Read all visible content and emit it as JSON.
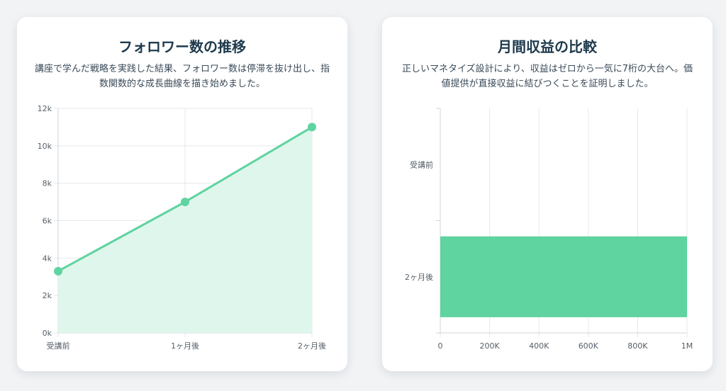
{
  "colors": {
    "accent": "#5fd3a0",
    "accent_fill": "#dff6ec",
    "title": "#1e3a4c"
  },
  "followers_card": {
    "title": "フォロワー数の推移",
    "description": "講座で学んだ戦略を実践した結果、フォロワー数は停滞を抜け出し、指数関数的な成長曲線を描き始めました。"
  },
  "revenue_card": {
    "title": "月間収益の比較",
    "description": "正しいマネタイズ設計により、収益はゼロから一気に7桁の大台へ。価値提供が直接収益に結びつくことを証明しました。"
  },
  "chart_data": [
    {
      "type": "area",
      "title": "フォロワー数の推移",
      "categories": [
        "受講前",
        "1ヶ月後",
        "2ヶ月後"
      ],
      "values": [
        3300,
        7000,
        11000
      ],
      "ylim": [
        0,
        12000
      ],
      "yticks": [
        {
          "value": 0,
          "label": "0k"
        },
        {
          "value": 2000,
          "label": "2k"
        },
        {
          "value": 4000,
          "label": "4k"
        },
        {
          "value": 6000,
          "label": "6k"
        },
        {
          "value": 8000,
          "label": "8k"
        },
        {
          "value": 10000,
          "label": "10k"
        },
        {
          "value": 12000,
          "label": "12k"
        }
      ],
      "grid": true,
      "legend": "none"
    },
    {
      "type": "bar",
      "orientation": "horizontal",
      "title": "月間収益の比較",
      "categories": [
        "受講前",
        "2ヶ月後"
      ],
      "values": [
        0,
        1000000
      ],
      "xlim": [
        0,
        1000000
      ],
      "xticks": [
        {
          "value": 0,
          "label": "0"
        },
        {
          "value": 200000,
          "label": "200K"
        },
        {
          "value": 400000,
          "label": "400K"
        },
        {
          "value": 600000,
          "label": "600K"
        },
        {
          "value": 800000,
          "label": "800K"
        },
        {
          "value": 1000000,
          "label": "1M"
        }
      ],
      "grid": true,
      "legend": "none"
    }
  ]
}
